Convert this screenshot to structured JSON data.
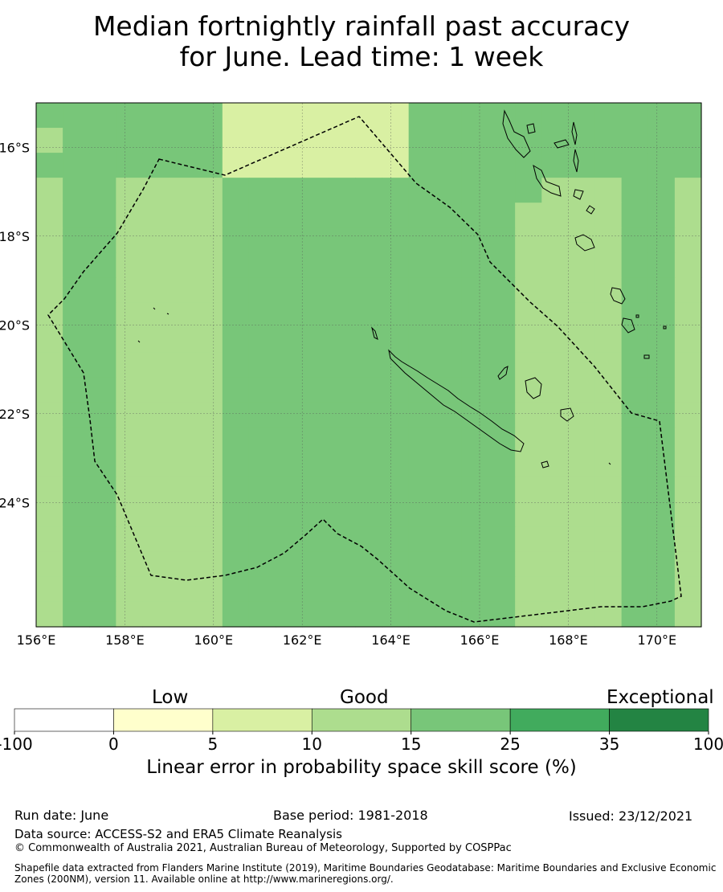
{
  "title": {
    "line1": "Median fortnightly rainfall past accuracy",
    "line2": "for June. Lead time: 1 week"
  },
  "map": {
    "lon_labels": [
      "156°E",
      "158°E",
      "160°E",
      "162°E",
      "164°E",
      "166°E",
      "168°E",
      "170°E"
    ],
    "lat_labels": [
      "16°S",
      "18°S",
      "20°S",
      "22°S",
      "24°S"
    ],
    "lon_values": [
      156,
      158,
      160,
      162,
      164,
      166,
      168,
      170
    ],
    "lat_values": [
      -16,
      -18,
      -20,
      -22,
      -24
    ],
    "lon_range": [
      156,
      171
    ],
    "lat_range": [
      -26.8,
      -15.0
    ],
    "grid": true,
    "gridded_skill_classes": [
      "4444444222222244444444444",
      "3444444222222244444444444",
      "4444444222222244444444444",
      "3443333444444444444333443",
      "3443333444444444443333443",
      "3443333444444444443333443",
      "3443333444444444443333443",
      "3443333444444444443333443",
      "3443333444444444443333443",
      "3443333444444444443333443",
      "3443333444444444443333443",
      "3443333444444444443333443",
      "3443333444444444443333443",
      "3443333444444444443333443",
      "3443333444444444443333443",
      "3443333444444444443333443",
      "3443333444444444443333443",
      "3443333444444444443333443",
      "3443333444444444443333443",
      "3443333444444444443333443",
      "3443333444444444443333443"
    ]
  },
  "colorbar": {
    "category_labels": [
      "Low",
      "Good",
      "Exceptional"
    ],
    "tick_labels": [
      "-100",
      "0",
      "5",
      "10",
      "15",
      "25",
      "35",
      "100"
    ],
    "colors": [
      "#ffffff",
      "#ffffcc",
      "#d9f0a3",
      "#addd8e",
      "#78c679",
      "#41ab5d",
      "#238443"
    ],
    "axis_label": "Linear error in probability space skill score (%)"
  },
  "footer": {
    "run_date": "Run date: June",
    "base_period": "Base period: 1981-2018",
    "issued": "Issued: 23/12/2021",
    "data_source": "Data source: ACCESS-S2 and ERA5 Climate Reanalysis",
    "copyright": "© Commonwealth of Australia 2021, Australian Bureau of Meteorology, Supported by COSPPac",
    "shapefile": "Shapefile data extracted from Flanders Marine Institute (2019), Maritime Boundaries Geodatabase: Maritime Boundaries and Exclusive Economic Zones (200NM), version 11. Available online at http://www.marineregions.org/."
  }
}
